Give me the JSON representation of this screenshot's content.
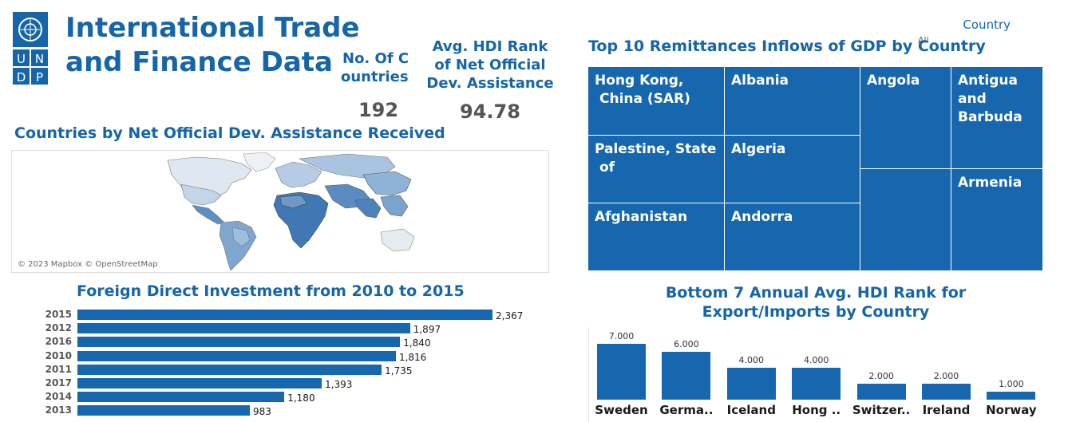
{
  "logo": {
    "letters": [
      "U",
      "N",
      "D",
      "P"
    ]
  },
  "header": {
    "title_line1": "International Trade",
    "title_line2": "and Finance Data"
  },
  "kpis": {
    "countries": {
      "label_line1": "No. Of C",
      "label_line2": "ountries",
      "value": "192"
    },
    "hdi_rank": {
      "label_line1": "Avg. HDI Rank",
      "label_line2": "of Net Official",
      "label_line3": "Dev. Assistance",
      "value": "94.78"
    }
  },
  "filter": {
    "label": "Country",
    "value": "All"
  },
  "map": {
    "title": "Countries by Net Official Dev. Assistance Received",
    "attribution": "© 2023 Mapbox © OpenStreetMap"
  },
  "treemap": {
    "title": "Top 10 Remittances Inflows of GDP by Country",
    "tiles": [
      {
        "label": "Hong Kong, China (SAR)"
      },
      {
        "label": "Albania"
      },
      {
        "label": "Angola"
      },
      {
        "label": "Antigua and Barbuda"
      },
      {
        "label": "Palestine, State of"
      },
      {
        "label": "Algeria"
      },
      {
        "label": "Armenia"
      },
      {
        "label": "Afghanistan"
      },
      {
        "label": "Andorra"
      },
      {
        "label": ""
      }
    ]
  },
  "chart_data": [
    {
      "type": "bar",
      "title": "Foreign Direct Investment from 2010 to 2015",
      "orientation": "horizontal",
      "categories": [
        "2015",
        "2012",
        "2016",
        "2010",
        "2011",
        "2017",
        "2014",
        "2013"
      ],
      "values": [
        2367,
        1897,
        1840,
        1816,
        1735,
        1393,
        1180,
        983
      ],
      "value_labels": [
        "2,367",
        "1,897",
        "1,840",
        "1,816",
        "1,735",
        "1,393",
        "1,180",
        "983"
      ],
      "xlim": [
        0,
        2367
      ],
      "grid": false
    },
    {
      "type": "bar",
      "title_line1": "Bottom 7 Annual Avg. HDI Rank for",
      "title_line2": "Export/Imports by Country",
      "categories": [
        "Sweden",
        "Germa..",
        "Iceland",
        "Hong ..",
        "Switzer..",
        "Ireland",
        "Norway"
      ],
      "values": [
        7,
        6,
        4,
        4,
        2,
        2,
        1
      ],
      "value_labels": [
        "7.000",
        "6.000",
        "4.000",
        "4.000",
        "2.000",
        "2.000",
        "1.000"
      ],
      "ylim": [
        0,
        7
      ],
      "grid": false
    }
  ],
  "colors": {
    "accent": "#1565a8",
    "bar": "#1667ae",
    "map_low": "#dfe8f1",
    "map_high": "#3f78b3"
  }
}
